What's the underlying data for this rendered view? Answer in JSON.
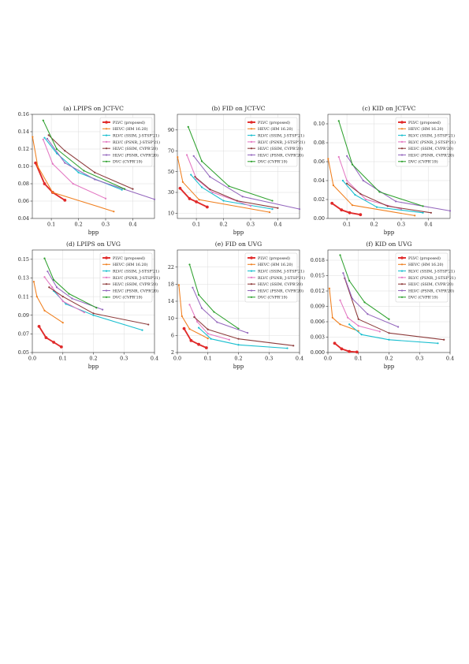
{
  "colors": {
    "PLVC": "#e02a2a",
    "HEVC": "#f07f1e",
    "RLVC_SSIM": "#17becf",
    "RLVC_PSNR": "#e377c2",
    "HLVC_SSIM": "#8c3a3a",
    "HLVC_PSNR": "#9467bd",
    "DVC": "#2ca02c"
  },
  "legend": [
    {
      "key": "PLVC",
      "label": "PLVC (proposed)"
    },
    {
      "key": "HEVC",
      "label": "HEVC (HM 16.20)"
    },
    {
      "key": "RLVC_SSIM",
      "label": "RLVC (SSIM, J-STSP'21)"
    },
    {
      "key": "RLVC_PSNR",
      "label": "RLVC (PSNR, J-STSP'21)"
    },
    {
      "key": "HLVC_SSIM",
      "label": "HLVC (SSIM, CVPR'20)"
    },
    {
      "key": "HLVC_PSNR",
      "label": "HLVC (PSNR, CVPR'20)"
    },
    {
      "key": "DVC",
      "label": "DVC (CVPR'19)"
    }
  ],
  "chart_data": [
    {
      "type": "line",
      "title": "(a) LPIPS on JCT-VC",
      "xlabel": "bpp",
      "ylabel": "",
      "xlim": [
        0.03,
        0.48
      ],
      "ylim": [
        0.04,
        0.16
      ],
      "xticks": [
        0.1,
        0.2,
        0.3,
        0.4
      ],
      "yticks": [
        0.04,
        0.06,
        0.08,
        0.1,
        0.12,
        0.14,
        0.16
      ],
      "xtick_labels": [
        "0.1",
        "0.2",
        "0.3",
        "0.4"
      ],
      "ytick_labels": [
        "0.04",
        "0.06",
        "0.08",
        "0.10",
        "0.12",
        "0.14",
        "0.16"
      ],
      "grid": true,
      "legend_position": "top-right",
      "series": [
        {
          "name": "PLVC (proposed)",
          "key": "PLVC",
          "x": [
            0.042,
            0.075,
            0.105,
            0.15
          ],
          "y": [
            0.104,
            0.08,
            0.07,
            0.061
          ]
        },
        {
          "name": "HEVC (HM 16.20)",
          "key": "HEVC",
          "x": [
            0.031,
            0.05,
            0.105,
            0.33
          ],
          "y": [
            0.134,
            0.1,
            0.07,
            0.048
          ]
        },
        {
          "name": "RLVC (SSIM, J-STSP'21)",
          "key": "RLVC_SSIM",
          "x": [
            0.075,
            0.12,
            0.2,
            0.36
          ],
          "y": [
            0.133,
            0.115,
            0.093,
            0.073
          ]
        },
        {
          "name": "RLVC (PSNR, J-STSP'21)",
          "key": "RLVC_PSNR",
          "x": [
            0.07,
            0.105,
            0.18,
            0.3
          ],
          "y": [
            0.131,
            0.103,
            0.08,
            0.063
          ]
        },
        {
          "name": "HLVC (SSIM, CVPR'20)",
          "key": "HLVC_SSIM",
          "x": [
            0.09,
            0.15,
            0.26,
            0.4
          ],
          "y": [
            0.136,
            0.118,
            0.093,
            0.074
          ]
        },
        {
          "name": "HLVC (PSNR, CVPR'20)",
          "key": "HLVC_PSNR",
          "x": [
            0.085,
            0.15,
            0.26,
            0.48
          ],
          "y": [
            0.132,
            0.104,
            0.085,
            0.062
          ]
        },
        {
          "name": "DVC (CVPR'19)",
          "key": "DVC",
          "x": [
            0.07,
            0.12,
            0.22,
            0.37
          ],
          "y": [
            0.153,
            0.12,
            0.095,
            0.074
          ]
        }
      ]
    },
    {
      "type": "line",
      "title": "(b) FID on JCT-VC",
      "xlabel": "bpp",
      "ylabel": "",
      "xlim": [
        0.03,
        0.48
      ],
      "ylim": [
        5,
        105
      ],
      "xticks": [
        0.1,
        0.2,
        0.3,
        0.4
      ],
      "yticks": [
        10,
        30,
        50,
        70,
        90
      ],
      "xtick_labels": [
        "0.1",
        "0.2",
        "0.3",
        "0.4"
      ],
      "ytick_labels": [
        "10",
        "30",
        "50",
        "70",
        "90"
      ],
      "grid": true,
      "legend_position": "top-right",
      "series": [
        {
          "name": "PLVC (proposed)",
          "key": "PLVC",
          "x": [
            0.04,
            0.075,
            0.1,
            0.14
          ],
          "y": [
            34,
            24,
            21,
            16
          ]
        },
        {
          "name": "HEVC (HM 16.20)",
          "key": "HEVC",
          "x": [
            0.031,
            0.05,
            0.11,
            0.37
          ],
          "y": [
            64,
            40,
            23,
            11
          ]
        },
        {
          "name": "RLVC (SSIM, J-STSP'21)",
          "key": "RLVC_SSIM",
          "x": [
            0.08,
            0.12,
            0.2,
            0.38
          ],
          "y": [
            47,
            35,
            22,
            14
          ]
        },
        {
          "name": "RLVC (PSNR, J-STSP'21)",
          "key": "RLVC_PSNR",
          "x": [
            0.065,
            0.1,
            0.16,
            0.3
          ],
          "y": [
            66,
            43,
            30,
            17
          ]
        },
        {
          "name": "HLVC (SSIM, CVPR'20)",
          "key": "HLVC_SSIM",
          "x": [
            0.095,
            0.15,
            0.25,
            0.4
          ],
          "y": [
            45,
            33,
            22,
            15
          ]
        },
        {
          "name": "HLVC (PSNR, CVPR'20)",
          "key": "HLVC_PSNR",
          "x": [
            0.09,
            0.15,
            0.27,
            0.48
          ],
          "y": [
            65,
            45,
            26,
            14
          ]
        },
        {
          "name": "DVC (CVPR'19)",
          "key": "DVC",
          "x": [
            0.07,
            0.12,
            0.22,
            0.38
          ],
          "y": [
            93,
            60,
            36,
            22
          ]
        }
      ]
    },
    {
      "type": "line",
      "title": "(c) KID on JCT-VC",
      "xlabel": "bpp",
      "ylabel": "",
      "xlim": [
        0.03,
        0.48
      ],
      "ylim": [
        0.0,
        0.11
      ],
      "xticks": [
        0.1,
        0.2,
        0.3,
        0.4
      ],
      "yticks": [
        0.0,
        0.02,
        0.04,
        0.06,
        0.08,
        0.1
      ],
      "xtick_labels": [
        "0.1",
        "0.2",
        "0.3",
        "0.4"
      ],
      "ytick_labels": [
        "0.00",
        "0.02",
        "0.04",
        "0.06",
        "0.08",
        "0.10"
      ],
      "grid": true,
      "legend_position": "top-right",
      "series": [
        {
          "name": "PLVC (proposed)",
          "key": "PLVC",
          "x": [
            0.045,
            0.08,
            0.11,
            0.15
          ],
          "y": [
            0.016,
            0.009,
            0.006,
            0.004
          ]
        },
        {
          "name": "HEVC (HM 16.20)",
          "key": "HEVC",
          "x": [
            0.031,
            0.05,
            0.12,
            0.35
          ],
          "y": [
            0.063,
            0.035,
            0.014,
            0.003
          ]
        },
        {
          "name": "RLVC (SSIM, J-STSP'21)",
          "key": "RLVC_SSIM",
          "x": [
            0.085,
            0.13,
            0.21,
            0.38
          ],
          "y": [
            0.04,
            0.025,
            0.012,
            0.006
          ]
        },
        {
          "name": "RLVC (PSNR, J-STSP'21)",
          "key": "RLVC_PSNR",
          "x": [
            0.07,
            0.1,
            0.17,
            0.3
          ],
          "y": [
            0.065,
            0.04,
            0.02,
            0.01
          ]
        },
        {
          "name": "HLVC (SSIM, CVPR'20)",
          "key": "HLVC_SSIM",
          "x": [
            0.1,
            0.15,
            0.25,
            0.41
          ],
          "y": [
            0.037,
            0.026,
            0.013,
            0.006
          ]
        },
        {
          "name": "HLVC (PSNR, CVPR'20)",
          "key": "HLVC_PSNR",
          "x": [
            0.1,
            0.16,
            0.28,
            0.48
          ],
          "y": [
            0.066,
            0.04,
            0.018,
            0.008
          ]
        },
        {
          "name": "DVC (CVPR'19)",
          "key": "DVC",
          "x": [
            0.07,
            0.12,
            0.22,
            0.38
          ],
          "y": [
            0.103,
            0.057,
            0.028,
            0.013
          ]
        }
      ]
    },
    {
      "type": "line",
      "title": "(d) LPIPS on UVG",
      "xlabel": "bpp",
      "ylabel": "",
      "xlim": [
        0.0,
        0.4
      ],
      "ylim": [
        0.05,
        0.16
      ],
      "xticks": [
        0.0,
        0.1,
        0.2,
        0.3,
        0.4
      ],
      "yticks": [
        0.05,
        0.07,
        0.09,
        0.11,
        0.13,
        0.15
      ],
      "xtick_labels": [
        "0.0",
        "0.1",
        "0.2",
        "0.3",
        "0.4"
      ],
      "ytick_labels": [
        "0.05",
        "0.07",
        "0.09",
        "0.11",
        "0.13",
        "0.15"
      ],
      "grid": true,
      "legend_position": "top-right",
      "series": [
        {
          "name": "PLVC (proposed)",
          "key": "PLVC",
          "x": [
            0.022,
            0.045,
            0.07,
            0.095
          ],
          "y": [
            0.078,
            0.066,
            0.061,
            0.056
          ]
        },
        {
          "name": "HEVC (HM 16.20)",
          "key": "HEVC",
          "x": [
            0.005,
            0.015,
            0.04,
            0.1
          ],
          "y": [
            0.126,
            0.11,
            0.095,
            0.082
          ]
        },
        {
          "name": "RLVC (SSIM, J-STSP'21)",
          "key": "RLVC_SSIM",
          "x": [
            0.07,
            0.11,
            0.2,
            0.36
          ],
          "y": [
            0.116,
            0.102,
            0.09,
            0.074
          ]
        },
        {
          "name": "RLVC (PSNR, J-STSP'21)",
          "key": "RLVC_PSNR",
          "x": [
            0.04,
            0.065,
            0.1,
            0.17
          ],
          "y": [
            0.131,
            0.12,
            0.105,
            0.093
          ]
        },
        {
          "name": "HLVC (SSIM, CVPR'20)",
          "key": "HLVC_SSIM",
          "x": [
            0.055,
            0.1,
            0.2,
            0.38
          ],
          "y": [
            0.12,
            0.11,
            0.092,
            0.08
          ]
        },
        {
          "name": "HLVC (PSNR, CVPR'20)",
          "key": "HLVC_PSNR",
          "x": [
            0.05,
            0.08,
            0.13,
            0.23
          ],
          "y": [
            0.137,
            0.12,
            0.108,
            0.096
          ]
        },
        {
          "name": "DVC (CVPR'19)",
          "key": "DVC",
          "x": [
            0.04,
            0.07,
            0.12,
            0.21
          ],
          "y": [
            0.151,
            0.128,
            0.113,
            0.098
          ]
        }
      ]
    },
    {
      "type": "line",
      "title": "(e) FID on UVG",
      "xlabel": "bpp",
      "ylabel": "",
      "xlim": [
        0.0,
        0.4
      ],
      "ylim": [
        2,
        26
      ],
      "xticks": [
        0.0,
        0.1,
        0.2,
        0.3,
        0.4
      ],
      "yticks": [
        2,
        6,
        10,
        14,
        18,
        22
      ],
      "xtick_labels": [
        "0.0",
        "0.1",
        "0.2",
        "0.3",
        "0.4"
      ],
      "ytick_labels": [
        "2",
        "6",
        "10",
        "14",
        "18",
        "22"
      ],
      "grid": true,
      "legend_position": "top-right",
      "series": [
        {
          "name": "PLVC (proposed)",
          "key": "PLVC",
          "x": [
            0.022,
            0.045,
            0.07,
            0.095
          ],
          "y": [
            7.6,
            4.8,
            3.9,
            3.1
          ]
        },
        {
          "name": "HEVC (HM 16.20)",
          "key": "HEVC",
          "x": [
            0.005,
            0.015,
            0.04,
            0.1
          ],
          "y": [
            17.8,
            10.5,
            7.5,
            5.3
          ]
        },
        {
          "name": "RLVC (SSIM, J-STSP'21)",
          "key": "RLVC_SSIM",
          "x": [
            0.07,
            0.11,
            0.2,
            0.36
          ],
          "y": [
            7.8,
            5.2,
            3.8,
            3.0
          ]
        },
        {
          "name": "RLVC (PSNR, J-STSP'21)",
          "key": "RLVC_PSNR",
          "x": [
            0.04,
            0.065,
            0.1,
            0.17
          ],
          "y": [
            13.2,
            9.2,
            6.4,
            5.0
          ]
        },
        {
          "name": "HLVC (SSIM, CVPR'20)",
          "key": "HLVC_SSIM",
          "x": [
            0.055,
            0.1,
            0.2,
            0.38
          ],
          "y": [
            10.3,
            7.4,
            5.2,
            3.6
          ]
        },
        {
          "name": "HLVC (PSNR, CVPR'20)",
          "key": "HLVC_PSNR",
          "x": [
            0.05,
            0.08,
            0.13,
            0.23
          ],
          "y": [
            17.2,
            12.4,
            9.1,
            6.6
          ]
        },
        {
          "name": "DVC (CVPR'19)",
          "key": "DVC",
          "x": [
            0.04,
            0.07,
            0.12,
            0.2
          ],
          "y": [
            22.6,
            15.5,
            11.5,
            7.6
          ]
        }
      ]
    },
    {
      "type": "line",
      "title": "(f) KID on UVG",
      "xlabel": "bpp",
      "ylabel": "",
      "xlim": [
        0.0,
        0.4
      ],
      "ylim": [
        0.0,
        0.02
      ],
      "xticks": [
        0.0,
        0.1,
        0.2,
        0.3,
        0.4
      ],
      "yticks": [
        0.0,
        0.003,
        0.006,
        0.009,
        0.012,
        0.015,
        0.018
      ],
      "xtick_labels": [
        "0.0",
        "0.1",
        "0.2",
        "0.3",
        "0.4"
      ],
      "ytick_labels": [
        "0.000",
        "0.003",
        "0.006",
        "0.009",
        "0.012",
        "0.015",
        "0.018"
      ],
      "grid": true,
      "legend_position": "top-right",
      "series": [
        {
          "name": "PLVC (proposed)",
          "key": "PLVC",
          "x": [
            0.022,
            0.045,
            0.07,
            0.095
          ],
          "y": [
            0.0018,
            0.0007,
            0.0002,
            0.0001
          ]
        },
        {
          "name": "HEVC (HM 16.20)",
          "key": "HEVC",
          "x": [
            0.005,
            0.015,
            0.04,
            0.1
          ],
          "y": [
            0.0125,
            0.0068,
            0.0055,
            0.0042
          ]
        },
        {
          "name": "RLVC (SSIM, J-STSP'21)",
          "key": "RLVC_SSIM",
          "x": [
            0.07,
            0.11,
            0.2,
            0.36
          ],
          "y": [
            0.0055,
            0.0035,
            0.0025,
            0.0018
          ]
        },
        {
          "name": "RLVC (PSNR, J-STSP'21)",
          "key": "RLVC_PSNR",
          "x": [
            0.04,
            0.065,
            0.1,
            0.17
          ],
          "y": [
            0.0102,
            0.0068,
            0.0052,
            0.0041
          ]
        },
        {
          "name": "HLVC (SSIM, CVPR'20)",
          "key": "HLVC_SSIM",
          "x": [
            0.055,
            0.1,
            0.2,
            0.38
          ],
          "y": [
            0.0145,
            0.0065,
            0.0038,
            0.0025
          ]
        },
        {
          "name": "HLVC (PSNR, CVPR'20)",
          "key": "HLVC_PSNR",
          "x": [
            0.05,
            0.08,
            0.13,
            0.23
          ],
          "y": [
            0.0155,
            0.0105,
            0.0075,
            0.005
          ]
        },
        {
          "name": "DVC (CVPR'19)",
          "key": "DVC",
          "x": [
            0.04,
            0.07,
            0.12,
            0.2
          ],
          "y": [
            0.019,
            0.014,
            0.0098,
            0.0065
          ]
        }
      ]
    }
  ]
}
